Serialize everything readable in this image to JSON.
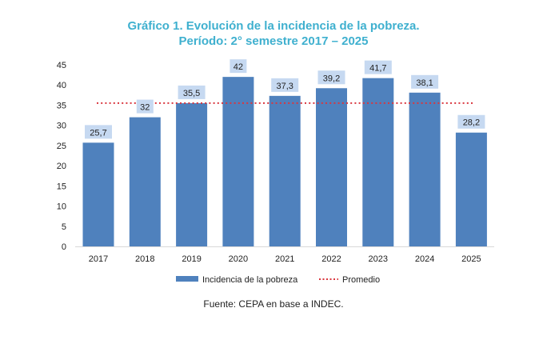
{
  "chart_data": {
    "type": "bar",
    "title": "Gráfico 1. Evolución de la incidencia de la pobreza.",
    "subtitle": "Período: 2° semestre 2017 – 2025",
    "categories": [
      "2017",
      "2018",
      "2019",
      "2020",
      "2021",
      "2022",
      "2023",
      "2024",
      "2025"
    ],
    "series": [
      {
        "name": "Incidencia de la pobreza",
        "type": "bar",
        "color": "#4f81bd",
        "values": [
          25.7,
          32,
          35.5,
          42,
          37.3,
          39.2,
          41.7,
          38.1,
          28.2
        ],
        "labels": [
          "25,7",
          "32",
          "35,5",
          "42",
          "37,3",
          "39,2",
          "41,7",
          "38,1",
          "28,2"
        ]
      },
      {
        "name": "Promedio",
        "type": "line",
        "style": "dotted",
        "color": "#d9363e",
        "value": 35.5
      }
    ],
    "ylim": [
      0,
      45
    ],
    "yticks": [
      0,
      5,
      10,
      15,
      20,
      25,
      30,
      35,
      40,
      45
    ],
    "xlabel": "",
    "ylabel": "",
    "grid": false,
    "legend": "bottom",
    "label_bg": "#c6d9f1",
    "source": "Fuente: CEPA en base a INDEC."
  }
}
